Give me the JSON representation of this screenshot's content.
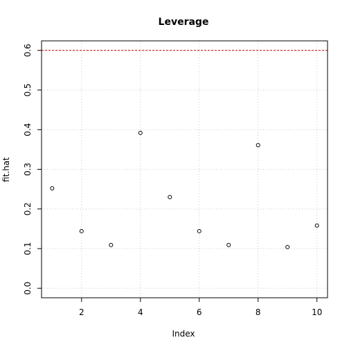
{
  "chart_data": {
    "type": "scatter",
    "title": "Leverage",
    "xlabel": "Index",
    "ylabel": "fit.hat",
    "x": [
      1,
      2,
      3,
      4,
      5,
      6,
      7,
      8,
      9,
      10
    ],
    "y": [
      0.252,
      0.144,
      0.109,
      0.392,
      0.23,
      0.144,
      0.109,
      0.361,
      0.104,
      0.158
    ],
    "xlim": [
      0.64,
      10.36
    ],
    "ylim": [
      -0.024,
      0.624
    ],
    "xticks": [
      "2",
      "4",
      "6",
      "8",
      "10"
    ],
    "yticks": [
      "0.0",
      "0.1",
      "0.2",
      "0.3",
      "0.4",
      "0.5",
      "0.6"
    ],
    "grid": true,
    "reference_line": {
      "orientation": "horizontal",
      "y": 0.6,
      "color": "#cc0000",
      "style": "dashed"
    },
    "point_color": "#000000",
    "grid_color": "#c8c8c8"
  }
}
